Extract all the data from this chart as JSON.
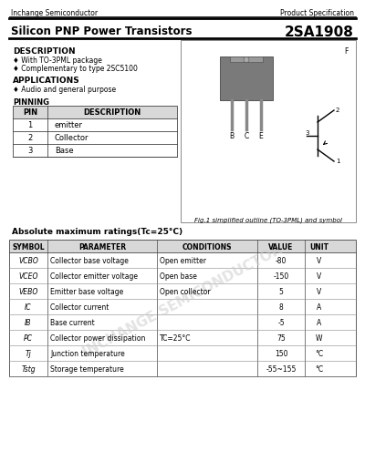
{
  "company": "Inchange Semiconductor",
  "spec_label": "Product Specification",
  "product_type": "Silicon PNP Power Transistors",
  "part_number": "2SA1908",
  "description_title": "DESCRIPTION",
  "description_items": [
    "♦ With TO-3PML package",
    "♦ Complementary to type 2SC5100"
  ],
  "applications_title": "APPLICATIONS",
  "applications_items": [
    "♦ Audio and general purpose"
  ],
  "pinning_title": "PINNING",
  "pin_headers": [
    "PIN",
    "DESCRIPTION"
  ],
  "pin_rows": [
    [
      "1",
      "emitter"
    ],
    [
      "2",
      "Collector"
    ],
    [
      "3",
      "Base"
    ]
  ],
  "fig_caption": "Fig.1 simplified outline (TO-3PML) and symbol",
  "abs_max_title": "Absolute maximum ratings(Tc=25°C)",
  "table_headers": [
    "SYMBOL",
    "PARAMETER",
    "CONDITIONS",
    "VALUE",
    "UNIT"
  ],
  "row_symbols": [
    "VCBO",
    "VCEO",
    "VEBO",
    "IC",
    "IB",
    "PC",
    "Tj",
    "Tstg"
  ],
  "row_params": [
    "Collector base voltage",
    "Collector emitter voltage",
    "Emitter base voltage",
    "Collector current",
    "Base current",
    "Collector power dissipation",
    "Junction temperature",
    "Storage temperature"
  ],
  "row_conds": [
    "Open emitter",
    "Open base",
    "Open collector",
    "",
    "",
    "TC=25°C",
    "",
    ""
  ],
  "row_values": [
    "-80",
    "-150",
    "5",
    "8",
    "-5",
    "75",
    "150",
    "-55~155"
  ],
  "row_units": [
    "V",
    "V",
    "V",
    "A",
    "A",
    "W",
    "°C",
    "°C"
  ],
  "watermark": "INCHANGE SEMICONDUCTOR",
  "bg_color": "#ffffff",
  "text_color": "#000000",
  "gray_line": "#888888",
  "light_gray": "#cccccc",
  "header_gray": "#d8d8d8"
}
